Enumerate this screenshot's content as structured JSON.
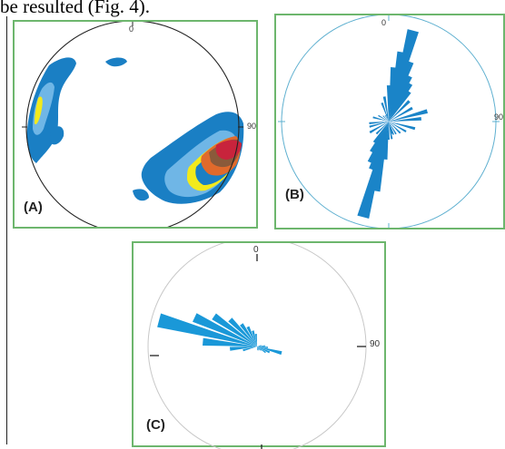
{
  "header": {
    "text": "be resulted (Fig. 4)."
  },
  "panels": {
    "a": {
      "label": "(A)",
      "north_tick": "0",
      "east_tick": "90"
    },
    "b": {
      "label": "(B)",
      "north_tick": "0",
      "east_tick": "90"
    },
    "c": {
      "label": "(C)",
      "north_tick": "0",
      "east_tick": "90"
    }
  },
  "colors": {
    "frame": "#6db66d",
    "contour_blue": "#1a7fc4",
    "contour_lightblue": "#6fb6e6",
    "contour_yellow": "#f2ea1c",
    "contour_orange": "#e06a2c",
    "contour_red": "#c8243c",
    "rose_b": "#1a84c8",
    "rose_c": "#1a98d8",
    "circle_b": "#5fb0d0",
    "circle_c": "#c8c8c8"
  }
}
